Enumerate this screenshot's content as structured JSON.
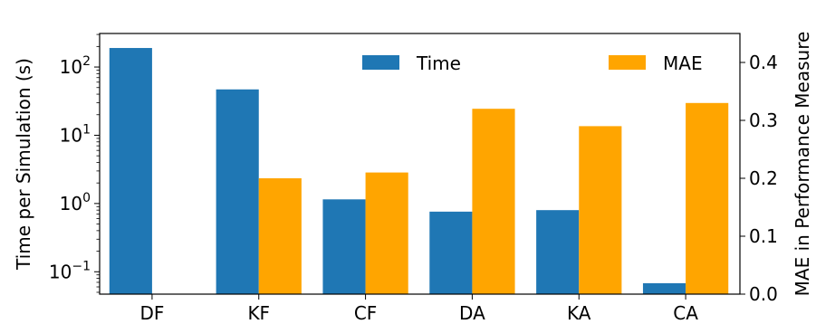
{
  "chart_data": {
    "type": "bar",
    "categories": [
      "DF",
      "KF",
      "CF",
      "DA",
      "KA",
      "CA"
    ],
    "series": [
      {
        "name": "Time",
        "axis": "left",
        "color": "#1f77b4",
        "values": [
          190,
          47,
          1.15,
          0.76,
          0.8,
          0.068
        ]
      },
      {
        "name": "MAE",
        "axis": "right",
        "color": "#ffa500",
        "values": [
          null,
          0.2,
          0.21,
          0.32,
          0.29,
          0.33
        ]
      }
    ],
    "ylabel": "Time per Simulation (s)",
    "ylabel_right": "MAE in Performance Measure",
    "yscale": "log",
    "ylim": [
      0.047,
      310
    ],
    "ylim_right": [
      0,
      0.45
    ],
    "yticks": [
      {
        "base": "10",
        "exp": "2",
        "value": 100
      },
      {
        "base": "10",
        "exp": "1",
        "value": 10
      },
      {
        "base": "10",
        "exp": "0",
        "value": 1
      },
      {
        "base": "10",
        "exp": "−1",
        "value": 0.1
      }
    ],
    "yticks_right": [
      "0.0",
      "0.1",
      "0.2",
      "0.3",
      "0.4"
    ],
    "legend": {
      "placement": "top-center",
      "entries": [
        "Time",
        "MAE"
      ]
    },
    "grid": false
  }
}
